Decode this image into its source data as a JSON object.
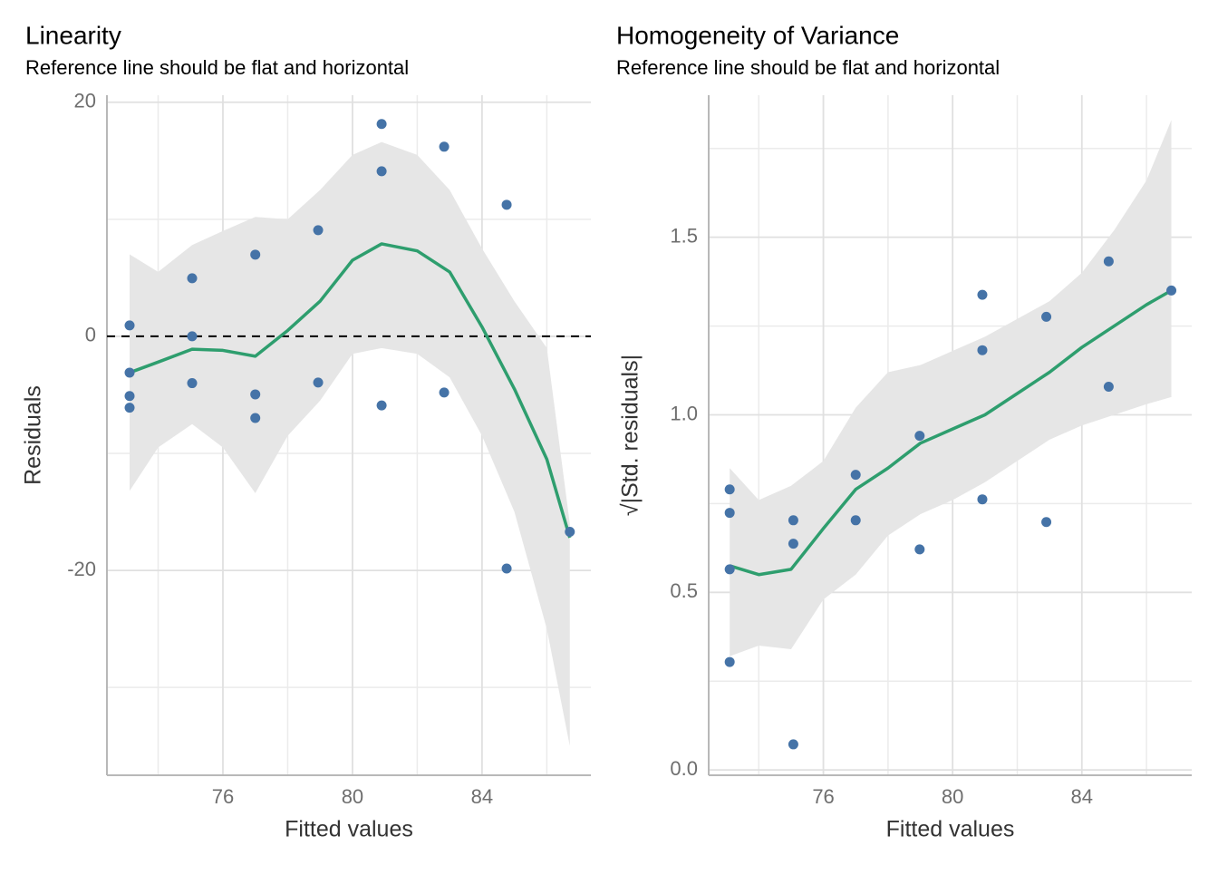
{
  "chart_data": [
    {
      "type": "scatter",
      "title": "Linearity",
      "subtitle": "Reference line should be flat and horizontal",
      "xlabel": "Fitted values",
      "ylabel": "Residuals",
      "x": [
        73.12,
        73.12,
        73.12,
        73.12,
        75.05,
        75.05,
        75.05,
        77.0,
        77.0,
        77.0,
        78.94,
        78.94,
        80.9,
        80.9,
        80.9,
        82.83,
        82.83,
        84.76,
        84.76,
        86.71
      ],
      "y": [
        0.93,
        -3.1,
        -5.1,
        -6.1,
        4.96,
        0,
        -4.0,
        6.98,
        -4.96,
        -6.98,
        9.07,
        -3.95,
        18.14,
        14.1,
        -5.9,
        16.2,
        -4.8,
        11.24,
        -19.84,
        -16.7
      ],
      "point_color": "#4573a7",
      "smooth": {
        "color": "#2e9e6e",
        "band_color": "#e6e6e6",
        "x": [
          73.12,
          74,
          75.05,
          76,
          77,
          78,
          79,
          80,
          80.9,
          82,
          83,
          84,
          85,
          86,
          86.71
        ],
        "y": [
          -3.1,
          -2.2,
          -1.1,
          -1.2,
          -1.7,
          0.5,
          3.0,
          6.5,
          7.9,
          7.3,
          5.5,
          0.8,
          -4.5,
          -10.5,
          -17.2
        ],
        "lower": [
          -13.2,
          -9.5,
          -7.5,
          -9.5,
          -13.4,
          -8.5,
          -5.5,
          -1.5,
          -1.0,
          -1.5,
          -3.5,
          -8.5,
          -15,
          -25,
          -35
        ],
        "upper": [
          7.0,
          5.5,
          7.8,
          9,
          10.2,
          10,
          12.5,
          15.5,
          16.6,
          15.5,
          12.5,
          7.5,
          3,
          -1,
          -16
        ]
      },
      "reference_line": 0,
      "xlim": [
        72.42,
        87.36
      ],
      "ylim": [
        -37.5,
        20.6
      ],
      "xticks": [
        76,
        80,
        84
      ],
      "yticks": [
        -20,
        0,
        20
      ],
      "x_minor_ticks": [
        74,
        78,
        82,
        86
      ],
      "y_minor_ticks": [
        -30,
        -10,
        10
      ],
      "grid": true
    },
    {
      "type": "scatter",
      "title": "Homogeneity of Variance",
      "subtitle": "Reference line should be flat and horizontal",
      "xlabel": "Fitted values",
      "ylabel": "√|Std. residuals|",
      "x": [
        73.1,
        73.1,
        73.1,
        73.1,
        75.07,
        75.07,
        75.07,
        77.0,
        77.0,
        78.98,
        78.98,
        80.92,
        80.92,
        80.92,
        82.9,
        82.9,
        84.83,
        84.83,
        86.77
      ],
      "y": [
        0.79,
        0.724,
        0.565,
        0.304,
        0.703,
        0.637,
        0.072,
        0.831,
        0.703,
        0.941,
        0.621,
        1.338,
        1.182,
        0.762,
        1.276,
        0.698,
        1.432,
        1.079,
        1.35
      ],
      "point_color": "#4573a7",
      "smooth": {
        "color": "#2e9e6e",
        "band_color": "#e6e6e6",
        "x": [
          73.1,
          74,
          75,
          76,
          77,
          78,
          79,
          80,
          81,
          82,
          83,
          84,
          85,
          86,
          86.77
        ],
        "y": [
          0.575,
          0.55,
          0.565,
          0.68,
          0.79,
          0.85,
          0.92,
          0.96,
          1.0,
          1.06,
          1.12,
          1.19,
          1.25,
          1.31,
          1.35
        ],
        "lower": [
          0.32,
          0.35,
          0.34,
          0.48,
          0.55,
          0.66,
          0.72,
          0.76,
          0.81,
          0.87,
          0.93,
          0.97,
          1.0,
          1.03,
          1.05
        ],
        "upper": [
          0.85,
          0.76,
          0.8,
          0.87,
          1.02,
          1.12,
          1.14,
          1.18,
          1.22,
          1.27,
          1.32,
          1.4,
          1.52,
          1.66,
          1.83
        ]
      },
      "xlim": [
        72.45,
        87.4
      ],
      "ylim": [
        -0.015,
        1.9
      ],
      "xticks": [
        76,
        80,
        84
      ],
      "yticks": [
        {
          "value": 0,
          "label": "0.0"
        },
        0.5,
        {
          "value": 1,
          "label": "1.0"
        },
        1.5
      ],
      "x_minor_ticks": [
        74,
        78,
        82,
        86
      ],
      "y_minor_ticks": [
        0.25,
        0.75,
        1.25,
        1.75
      ],
      "grid": true
    }
  ]
}
